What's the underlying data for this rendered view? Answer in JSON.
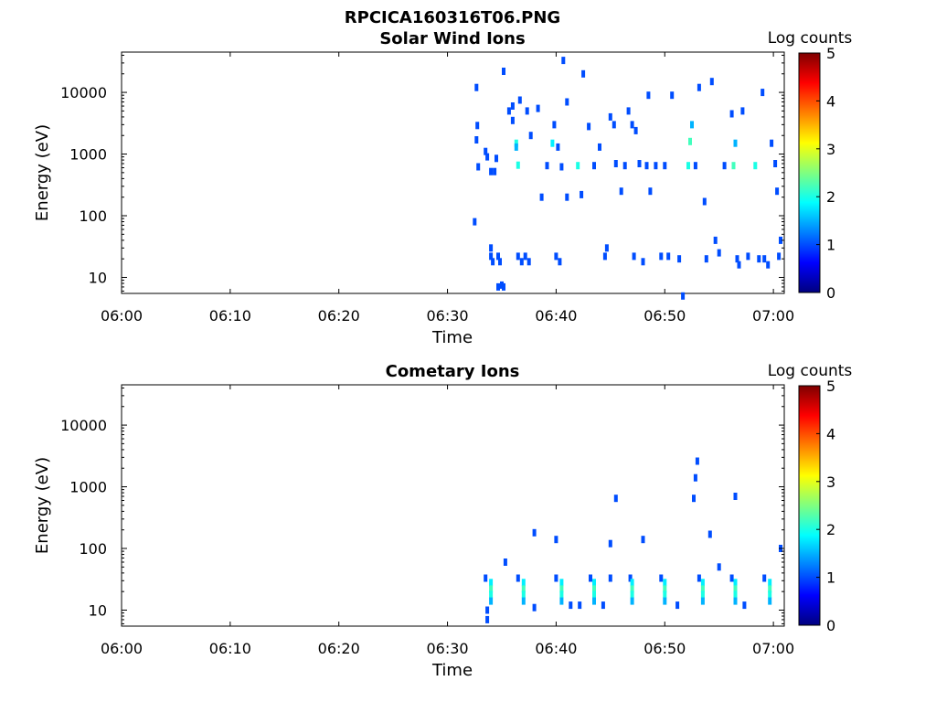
{
  "figure_title": "RPCICA160316T06.PNG",
  "chart_data": [
    {
      "type": "heatmap",
      "title": "Solar Wind Ions",
      "xlabel": "Time",
      "ylabel": "Energy (eV)",
      "xscale": "time",
      "xlim": [
        "06:00",
        "07:01"
      ],
      "xticks": [
        "06:00",
        "06:10",
        "06:20",
        "06:30",
        "06:40",
        "06:50",
        "07:00"
      ],
      "yscale": "log",
      "ylim": [
        5.5,
        45000
      ],
      "yticks": [
        10,
        100,
        1000,
        10000
      ],
      "ytick_labels": [
        "10",
        "100",
        "1000",
        "10000"
      ],
      "colorbar": {
        "label": "Log counts",
        "range": [
          0,
          5
        ],
        "ticks": [
          "0",
          "1",
          "2",
          "3",
          "4",
          "5"
        ],
        "colormap": "jet"
      },
      "cells": [
        [
          "06:32:40",
          12000,
          1
        ],
        [
          "06:32:45",
          2900,
          1
        ],
        [
          "06:32:40",
          1700,
          1
        ],
        [
          "06:32:50",
          620,
          1
        ],
        [
          "06:32:30",
          80,
          1
        ],
        [
          "06:33:30",
          1100,
          1
        ],
        [
          "06:33:40",
          900,
          1
        ],
        [
          "06:34:00",
          520,
          1
        ],
        [
          "06:34:00",
          30,
          1
        ],
        [
          "06:34:00",
          22,
          1
        ],
        [
          "06:34:10",
          18,
          1
        ],
        [
          "06:34:30",
          850,
          1
        ],
        [
          "06:34:20",
          520,
          1
        ],
        [
          "06:34:40",
          22,
          1
        ],
        [
          "06:34:50",
          18,
          1
        ],
        [
          "06:35:10",
          22000,
          1
        ],
        [
          "06:34:40",
          7,
          1
        ],
        [
          "06:35:10",
          7,
          1
        ],
        [
          "06:35:00",
          7.5,
          1
        ],
        [
          "06:35:40",
          5000,
          1
        ],
        [
          "06:36:00",
          6000,
          1
        ],
        [
          "06:36:00",
          3500,
          1
        ],
        [
          "06:36:20",
          1500,
          2
        ],
        [
          "06:36:20",
          1300,
          1.5
        ],
        [
          "06:36:30",
          660,
          2
        ],
        [
          "06:36:40",
          7500,
          1
        ],
        [
          "06:36:30",
          22,
          1
        ],
        [
          "06:36:50",
          18,
          1
        ],
        [
          "06:37:10",
          22,
          1
        ],
        [
          "06:37:30",
          18,
          1
        ],
        [
          "06:37:20",
          5000,
          1
        ],
        [
          "06:37:40",
          2000,
          1
        ],
        [
          "06:38:20",
          5500,
          1
        ],
        [
          "06:38:40",
          200,
          1
        ],
        [
          "06:39:10",
          650,
          1
        ],
        [
          "06:39:40",
          1500,
          1.8
        ],
        [
          "06:39:50",
          3000,
          1
        ],
        [
          "06:40:10",
          1300,
          1
        ],
        [
          "06:40:00",
          22,
          1
        ],
        [
          "06:40:20",
          18,
          1
        ],
        [
          "06:40:30",
          620,
          1
        ],
        [
          "06:40:40",
          33000,
          1
        ],
        [
          "06:41:00",
          200,
          1
        ],
        [
          "06:41:00",
          7000,
          1
        ],
        [
          "06:42:00",
          650,
          2
        ],
        [
          "06:42:20",
          220,
          1
        ],
        [
          "06:42:30",
          20000,
          1
        ],
        [
          "06:43:00",
          2800,
          1
        ],
        [
          "06:43:30",
          650,
          1
        ],
        [
          "06:44:00",
          1300,
          1
        ],
        [
          "06:44:30",
          22,
          1
        ],
        [
          "06:44:40",
          30,
          1
        ],
        [
          "06:45:00",
          4000,
          1
        ],
        [
          "06:45:20",
          3000,
          1
        ],
        [
          "06:45:30",
          700,
          1
        ],
        [
          "06:46:00",
          250,
          1
        ],
        [
          "06:46:20",
          650,
          1
        ],
        [
          "06:46:40",
          5000,
          1
        ],
        [
          "06:47:00",
          3000,
          1
        ],
        [
          "06:47:10",
          22,
          1
        ],
        [
          "06:47:20",
          2400,
          1
        ],
        [
          "06:47:40",
          700,
          1
        ],
        [
          "06:48:00",
          18,
          1
        ],
        [
          "06:48:20",
          650,
          1
        ],
        [
          "06:48:30",
          9000,
          1
        ],
        [
          "06:48:40",
          250,
          1
        ],
        [
          "06:49:10",
          650,
          1
        ],
        [
          "06:49:40",
          22,
          1
        ],
        [
          "06:50:00",
          650,
          1
        ],
        [
          "06:50:20",
          22,
          1
        ],
        [
          "06:50:40",
          9000,
          1
        ],
        [
          "06:51:20",
          20,
          1
        ],
        [
          "06:51:40",
          5,
          1
        ],
        [
          "06:52:10",
          650,
          2
        ],
        [
          "06:52:20",
          1600,
          2.2
        ],
        [
          "06:52:30",
          3000,
          1.5
        ],
        [
          "06:52:50",
          650,
          1
        ],
        [
          "06:53:10",
          12000,
          1
        ],
        [
          "06:53:40",
          170,
          1
        ],
        [
          "06:53:50",
          20,
          1
        ],
        [
          "06:54:20",
          15000,
          1
        ],
        [
          "06:54:40",
          40,
          1
        ],
        [
          "06:55:00",
          25,
          1
        ],
        [
          "06:55:30",
          650,
          1
        ],
        [
          "06:56:10",
          4500,
          1
        ],
        [
          "06:56:20",
          650,
          2.2
        ],
        [
          "06:56:30",
          1500,
          1.5
        ],
        [
          "06:56:40",
          20,
          1
        ],
        [
          "06:56:50",
          16,
          1
        ],
        [
          "06:57:10",
          5000,
          1
        ],
        [
          "06:57:40",
          22,
          1
        ],
        [
          "06:58:20",
          650,
          2
        ],
        [
          "06:58:40",
          20,
          1
        ],
        [
          "06:59:00",
          10000,
          1
        ],
        [
          "06:59:10",
          20,
          1
        ],
        [
          "06:59:30",
          16,
          1
        ],
        [
          "06:59:50",
          1500,
          1
        ],
        [
          "07:00:10",
          700,
          1
        ],
        [
          "07:00:20",
          250,
          1
        ],
        [
          "07:00:40",
          40,
          1
        ],
        [
          "07:00:30",
          22,
          1
        ]
      ]
    },
    {
      "type": "heatmap",
      "title": "Cometary Ions",
      "xlabel": "Time",
      "ylabel": "Energy (eV)",
      "xscale": "time",
      "xlim": [
        "06:00",
        "07:01"
      ],
      "xticks": [
        "06:00",
        "06:10",
        "06:20",
        "06:30",
        "06:40",
        "06:50",
        "07:00"
      ],
      "yscale": "log",
      "ylim": [
        5.5,
        45000
      ],
      "yticks": [
        10,
        100,
        1000,
        10000
      ],
      "ytick_labels": [
        "10",
        "100",
        "1000",
        "10000"
      ],
      "colorbar": {
        "label": "Log counts",
        "range": [
          0,
          5
        ],
        "ticks": [
          "0",
          "1",
          "2",
          "3",
          "4",
          "5"
        ],
        "colormap": "jet"
      },
      "cells": [
        [
          "06:33:30",
          33,
          1
        ],
        [
          "06:34:00",
          28,
          1.8
        ],
        [
          "06:34:00",
          22,
          2.2
        ],
        [
          "06:34:00",
          18,
          2
        ],
        [
          "06:34:00",
          14,
          1.5
        ],
        [
          "06:33:40",
          10,
          1
        ],
        [
          "06:33:40",
          7,
          1
        ],
        [
          "06:35:20",
          60,
          1
        ],
        [
          "06:36:30",
          33,
          1
        ],
        [
          "06:37:00",
          28,
          1.8
        ],
        [
          "06:37:00",
          22,
          2.2
        ],
        [
          "06:37:00",
          18,
          2
        ],
        [
          "06:37:00",
          14,
          1.5
        ],
        [
          "06:38:00",
          11,
          1
        ],
        [
          "06:38:00",
          180,
          1
        ],
        [
          "06:40:00",
          140,
          1
        ],
        [
          "06:40:00",
          33,
          1
        ],
        [
          "06:40:30",
          28,
          1.8
        ],
        [
          "06:40:30",
          22,
          2.2
        ],
        [
          "06:40:30",
          18,
          2
        ],
        [
          "06:40:30",
          14,
          1.5
        ],
        [
          "06:41:20",
          12,
          1
        ],
        [
          "06:42:10",
          12,
          1
        ],
        [
          "06:43:10",
          33,
          1
        ],
        [
          "06:43:30",
          28,
          1.8
        ],
        [
          "06:43:30",
          22,
          2.2
        ],
        [
          "06:43:30",
          18,
          2
        ],
        [
          "06:43:30",
          14,
          1.5
        ],
        [
          "06:44:20",
          12,
          1
        ],
        [
          "06:45:00",
          120,
          1
        ],
        [
          "06:45:00",
          33,
          1
        ],
        [
          "06:45:30",
          650,
          1
        ],
        [
          "06:46:50",
          33,
          1
        ],
        [
          "06:47:00",
          28,
          1.8
        ],
        [
          "06:47:00",
          22,
          2.2
        ],
        [
          "06:47:00",
          18,
          2
        ],
        [
          "06:47:00",
          14,
          1.5
        ],
        [
          "06:48:00",
          140,
          1
        ],
        [
          "06:49:40",
          33,
          1
        ],
        [
          "06:50:00",
          28,
          1.8
        ],
        [
          "06:50:00",
          22,
          2.2
        ],
        [
          "06:50:00",
          18,
          2
        ],
        [
          "06:50:00",
          14,
          1.5
        ],
        [
          "06:51:10",
          12,
          1
        ],
        [
          "06:52:40",
          650,
          1
        ],
        [
          "06:52:50",
          1400,
          1
        ],
        [
          "06:53:00",
          2600,
          1
        ],
        [
          "06:53:10",
          33,
          1
        ],
        [
          "06:53:30",
          28,
          1.8
        ],
        [
          "06:53:30",
          22,
          2.2
        ],
        [
          "06:53:30",
          18,
          2
        ],
        [
          "06:53:30",
          14,
          1.5
        ],
        [
          "06:54:10",
          170,
          1
        ],
        [
          "06:55:00",
          50,
          1
        ],
        [
          "06:56:10",
          33,
          1
        ],
        [
          "06:56:30",
          28,
          1.8
        ],
        [
          "06:56:30",
          22,
          2.2
        ],
        [
          "06:56:30",
          18,
          2
        ],
        [
          "06:56:30",
          14,
          1.5
        ],
        [
          "06:56:30",
          700,
          1
        ],
        [
          "06:57:20",
          12,
          1
        ],
        [
          "06:59:10",
          33,
          1
        ],
        [
          "06:59:40",
          28,
          1.8
        ],
        [
          "06:59:40",
          22,
          2.2
        ],
        [
          "06:59:40",
          18,
          2
        ],
        [
          "06:59:40",
          14,
          1.5
        ],
        [
          "07:00:40",
          100,
          1
        ]
      ]
    }
  ]
}
